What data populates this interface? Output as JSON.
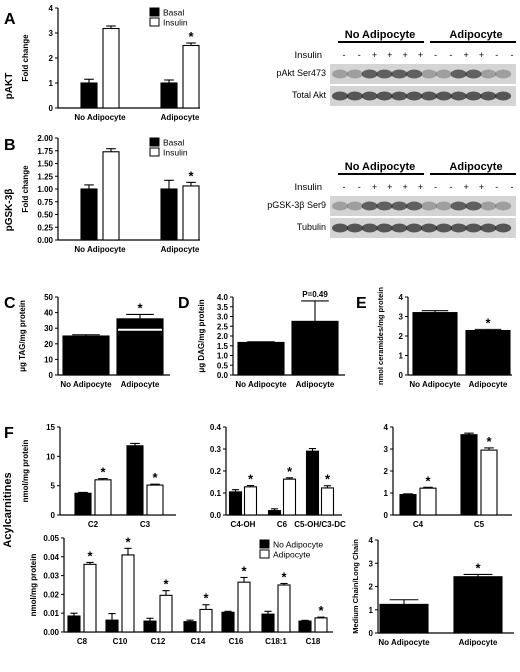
{
  "figure": {
    "panel_letters": [
      "A",
      "B",
      "C",
      "D",
      "E",
      "F"
    ],
    "row_labels": {
      "A": "pAKT",
      "B": "pGSK-3β",
      "F": "Acylcarnitines"
    }
  },
  "legends": {
    "basal_insulin": [
      "Basal",
      "Insulin"
    ],
    "adipocyte": [
      "No Adipocyte",
      "Adipocyte"
    ]
  },
  "blots": [
    {
      "id": "blot-A",
      "headers": [
        "No Adipocyte",
        "Adipocyte"
      ],
      "insulin_label": "Insulin",
      "insulin_signs": [
        "-",
        "-",
        "+",
        "+",
        "+",
        "+",
        "-",
        "-",
        "+",
        "+",
        "-",
        "-"
      ],
      "bands": [
        "pAkt Ser473",
        "Total Akt"
      ]
    },
    {
      "id": "blot-B",
      "headers": [
        "No Adipocyte",
        "Adipocyte"
      ],
      "insulin_label": "Insulin",
      "insulin_signs": [
        "-",
        "-",
        "+",
        "+",
        "+",
        "+",
        "-",
        "-",
        "+",
        "+",
        "-",
        "-"
      ],
      "bands": [
        "pGSK-3β Ser9",
        "Tubulin"
      ]
    }
  ],
  "chart_data": [
    {
      "id": "A",
      "type": "bar",
      "ylabel": "Fold change",
      "yticks": [
        0,
        1,
        2,
        3,
        4
      ],
      "ylim": [
        0,
        4
      ],
      "categories": [
        "No Adipocyte",
        "Adipocyte"
      ],
      "series": [
        {
          "name": "Basal",
          "values": [
            1.0,
            1.0
          ],
          "errors": [
            0.15,
            0.12
          ]
        },
        {
          "name": "Insulin",
          "values": [
            3.18,
            2.5
          ],
          "errors": [
            0.1,
            0.1
          ]
        }
      ],
      "annotations": [
        {
          "category": 1,
          "series": 1,
          "text": "*"
        }
      ]
    },
    {
      "id": "B",
      "type": "bar",
      "ylabel": "Fold change",
      "yticks": [
        "0.00",
        "0.25",
        "0.50",
        "0.75",
        "1.00",
        "1.25",
        "1.50",
        "1.75",
        "2.00"
      ],
      "ylim": [
        0,
        2
      ],
      "categories": [
        "No Adipocyte",
        "Adipocyte"
      ],
      "series": [
        {
          "name": "Basal",
          "values": [
            1.0,
            1.0
          ],
          "errors": [
            0.08,
            0.17
          ]
        },
        {
          "name": "Insulin",
          "values": [
            1.73,
            1.06
          ],
          "errors": [
            0.06,
            0.07
          ]
        }
      ],
      "annotations": [
        {
          "category": 1,
          "series": 1,
          "text": "*"
        }
      ]
    },
    {
      "id": "C",
      "type": "bar",
      "ylabel": "μg TAG/mg protein",
      "yticks": [
        0,
        10,
        20,
        30,
        40,
        50
      ],
      "ylim": [
        0,
        50
      ],
      "categories": [
        "No Adipocyte",
        "Adipocyte"
      ],
      "series": [
        {
          "name": "",
          "values": [
            25,
            36
          ],
          "errors": [
            0.8,
            2.8
          ]
        }
      ],
      "annotations": [
        {
          "category": 1,
          "series": 0,
          "text": "*"
        }
      ]
    },
    {
      "id": "D",
      "type": "bar",
      "ylabel": "μg DAG/mg protein",
      "yticks": [
        "0.0",
        "0.5",
        "1.0",
        "1.5",
        "2.0",
        "2.5",
        "3.0",
        "3.5",
        "4.0"
      ],
      "ylim": [
        0,
        4
      ],
      "categories": [
        "No Adipocyte",
        "Adipocyte"
      ],
      "series": [
        {
          "name": "",
          "values": [
            1.67,
            2.75
          ],
          "errors": [
            0.03,
            1.05
          ]
        }
      ],
      "annotations": [
        {
          "category": 1,
          "series": 0,
          "text": "P=0.49"
        }
      ]
    },
    {
      "id": "E",
      "type": "bar",
      "ylabel": "nmol ceramides/mg protein",
      "yticks": [
        0,
        1,
        2,
        3,
        4
      ],
      "ylim": [
        0,
        4
      ],
      "categories": [
        "No Adipocyte",
        "Adipocyte"
      ],
      "series": [
        {
          "name": "",
          "values": [
            3.2,
            2.28
          ],
          "errors": [
            0.1,
            0.06
          ]
        }
      ],
      "annotations": [
        {
          "category": 1,
          "series": 0,
          "text": "*"
        }
      ]
    },
    {
      "id": "F1",
      "type": "bar",
      "ylabel": "nmol/mg protein",
      "yticks": [
        0,
        5,
        10,
        15
      ],
      "ylim": [
        0,
        15
      ],
      "categories": [
        "C2",
        "C3"
      ],
      "series": [
        {
          "name": "No Adipocyte",
          "values": [
            3.7,
            11.8
          ],
          "errors": [
            0.15,
            0.4
          ]
        },
        {
          "name": "Adipocyte",
          "values": [
            6.0,
            5.1
          ],
          "errors": [
            0.2,
            0.15
          ]
        }
      ],
      "annotations": [
        {
          "category": 0,
          "series": 1,
          "text": "*"
        },
        {
          "category": 1,
          "series": 1,
          "text": "*"
        }
      ]
    },
    {
      "id": "F2",
      "type": "bar",
      "ylabel": "",
      "yticks": [
        "0.0",
        "0.1",
        "0.2",
        "0.3",
        "0.4"
      ],
      "ylim": [
        0,
        0.4
      ],
      "categories": [
        "C4-OH",
        "C6",
        "C5-OH/C3-DC"
      ],
      "series": [
        {
          "name": "No Adipocyte",
          "values": [
            0.105,
            0.02,
            0.29
          ],
          "errors": [
            0.01,
            0.008,
            0.012
          ]
        },
        {
          "name": "Adipocyte",
          "values": [
            0.128,
            0.163,
            0.123
          ],
          "errors": [
            0.006,
            0.006,
            0.01
          ]
        }
      ],
      "annotations": [
        {
          "category": 0,
          "series": 1,
          "text": "*"
        },
        {
          "category": 1,
          "series": 1,
          "text": "*"
        },
        {
          "category": 2,
          "series": 1,
          "text": "*"
        }
      ]
    },
    {
      "id": "F3",
      "type": "bar",
      "ylabel": "",
      "yticks": [
        0,
        1,
        2,
        3,
        4
      ],
      "ylim": [
        0,
        4
      ],
      "categories": [
        "C4",
        "C5"
      ],
      "series": [
        {
          "name": "No Adipocyte",
          "values": [
            0.93,
            3.65
          ],
          "errors": [
            0.03,
            0.07
          ]
        },
        {
          "name": "Adipocyte",
          "values": [
            1.22,
            2.95
          ],
          "errors": [
            0.04,
            0.1
          ]
        }
      ],
      "annotations": [
        {
          "category": 0,
          "series": 1,
          "text": "*"
        },
        {
          "category": 1,
          "series": 1,
          "text": "*"
        }
      ]
    },
    {
      "id": "F4",
      "type": "bar",
      "ylabel": "nmol/mg protein",
      "yticks": [
        "0.00",
        "0.01",
        "0.02",
        "0.03",
        "0.04",
        "0.05"
      ],
      "ylim": [
        0,
        0.05
      ],
      "categories": [
        "C8",
        "C10",
        "C12",
        "C14",
        "C16",
        "C18:1",
        "C18"
      ],
      "series": [
        {
          "name": "No Adipocyte",
          "values": [
            0.0085,
            0.0063,
            0.0058,
            0.0055,
            0.0105,
            0.0095,
            0.0058
          ],
          "errors": [
            0.0015,
            0.0035,
            0.0015,
            0.0008,
            0.0005,
            0.0015,
            0.0004
          ]
        },
        {
          "name": "Adipocyte",
          "values": [
            0.036,
            0.041,
            0.0195,
            0.012,
            0.0265,
            0.025,
            0.0075
          ],
          "errors": [
            0.001,
            0.0035,
            0.0025,
            0.0025,
            0.0025,
            0.0008,
            0.0004
          ]
        }
      ],
      "annotations": [
        {
          "category": 0,
          "series": 1,
          "text": "*"
        },
        {
          "category": 1,
          "series": 1,
          "text": "*"
        },
        {
          "category": 2,
          "series": 1,
          "text": "*"
        },
        {
          "category": 3,
          "series": 1,
          "text": "*"
        },
        {
          "category": 4,
          "series": 1,
          "text": "*"
        },
        {
          "category": 5,
          "series": 1,
          "text": "*"
        },
        {
          "category": 6,
          "series": 1,
          "text": "*"
        }
      ]
    },
    {
      "id": "F5",
      "type": "bar",
      "ylabel": "Medium Chain/Long Chain",
      "yticks": [
        0,
        1,
        2,
        3,
        4
      ],
      "ylim": [
        0,
        4
      ],
      "categories": [
        "No Adipocyte",
        "Adipocyte"
      ],
      "series": [
        {
          "name": "",
          "values": [
            1.23,
            2.42
          ],
          "errors": [
            0.2,
            0.1
          ]
        }
      ],
      "annotations": [
        {
          "category": 1,
          "series": 0,
          "text": "*"
        }
      ]
    }
  ]
}
